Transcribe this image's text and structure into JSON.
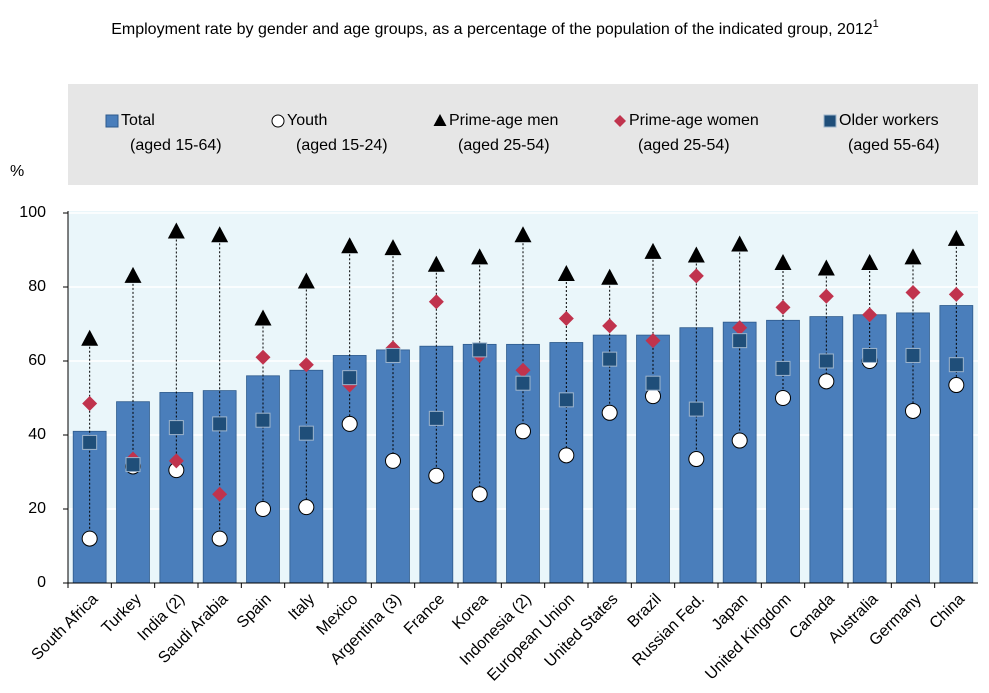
{
  "chart_data": {
    "type": "bar_markers",
    "title": "Employment rate by gender and age groups, as a percentage of the population of the indicated group, 2012",
    "title_note": "1",
    "y_label": "%",
    "categories": [
      "South Africa",
      "Turkey",
      "India (2)",
      "Saudi Arabia",
      "Spain",
      "Italy",
      "Mexico",
      "Argentina (3)",
      "France",
      "Korea",
      "Indonesia (2)",
      "European Union",
      "United States",
      "Brazil",
      "Russian Fed.",
      "Japan",
      "United Kingdom",
      "Canada",
      "Australia",
      "Germany",
      "China"
    ],
    "ylim": [
      0,
      100
    ],
    "yticks": [
      0,
      20,
      40,
      60,
      80,
      100
    ],
    "grid": true,
    "series": [
      {
        "name": "Total",
        "age_label": "(aged 15-64)",
        "marker": "bar",
        "color": "#4a7ebb",
        "values": [
          41,
          49,
          51.5,
          52,
          56,
          57.5,
          61.5,
          63,
          64,
          64.5,
          64.5,
          65,
          67,
          67,
          69,
          70.5,
          71,
          72,
          72.5,
          73,
          75
        ]
      },
      {
        "name": "Youth",
        "age_label": "(aged 15-24)",
        "marker": "circle",
        "color": "#ffffff",
        "values": [
          12,
          31.5,
          30.5,
          12,
          20,
          20.5,
          43,
          33,
          29,
          24,
          41,
          34.5,
          46,
          50.5,
          33.5,
          38.5,
          50,
          54.5,
          60,
          46.5,
          53.5
        ]
      },
      {
        "name": "Prime-age men",
        "age_label": "(aged 25-54)",
        "marker": "triangle",
        "color": "#000000",
        "values": [
          66,
          83,
          95,
          94,
          71.5,
          81.5,
          91,
          90.5,
          86,
          88,
          94,
          83.5,
          82.5,
          89.5,
          88.5,
          91.5,
          86.5,
          85,
          86.5,
          88,
          93
        ]
      },
      {
        "name": "Prime-age women",
        "age_label": "(aged 25-54)",
        "marker": "diamond",
        "color": "#c0334d",
        "values": [
          48.5,
          33.5,
          33,
          24,
          61,
          59,
          53.5,
          63.5,
          76,
          61.5,
          57.5,
          71.5,
          69.5,
          65.5,
          83,
          69,
          74.5,
          77.5,
          72.5,
          78.5,
          78
        ]
      },
      {
        "name": "Older workers",
        "age_label": "(aged 55-64)",
        "marker": "square",
        "color": "#1f4e79",
        "values": [
          38,
          32,
          42,
          43,
          44,
          40.5,
          55.5,
          61.5,
          44.5,
          63,
          54,
          49.5,
          60.5,
          54,
          47,
          65.5,
          58,
          60,
          61.5,
          61.5,
          59
        ]
      }
    ]
  }
}
